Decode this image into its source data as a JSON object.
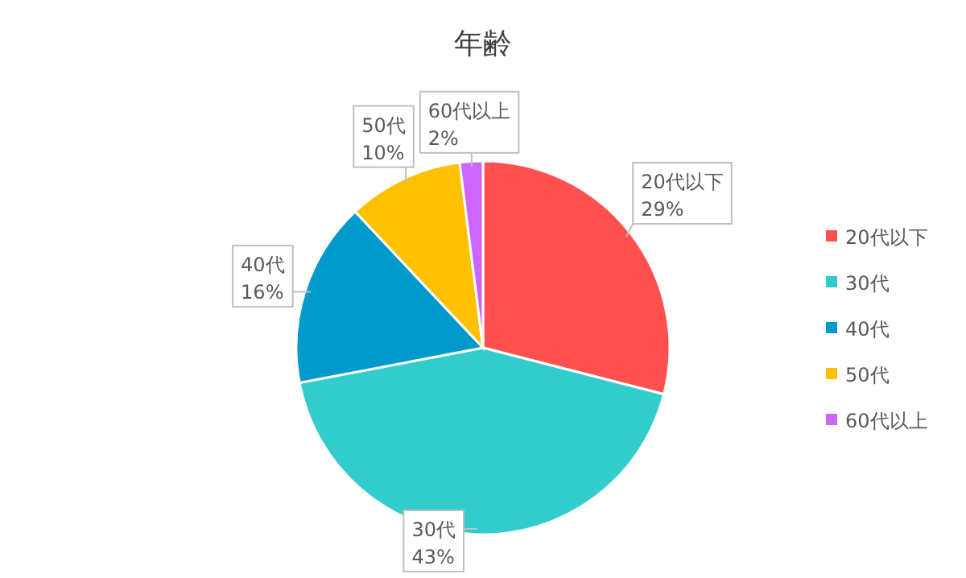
{
  "chart_data": {
    "type": "pie",
    "title": "年齢",
    "categories": [
      "20代以下",
      "30代",
      "40代",
      "50代",
      "60代以上"
    ],
    "values": [
      29,
      43,
      16,
      10,
      2
    ],
    "value_labels": [
      "29%",
      "43%",
      "16%",
      "10%",
      "2%"
    ],
    "colors": [
      "#ff5050",
      "#33cccc",
      "#0099cc",
      "#ffc000",
      "#cc66ff"
    ],
    "legend": "right"
  }
}
